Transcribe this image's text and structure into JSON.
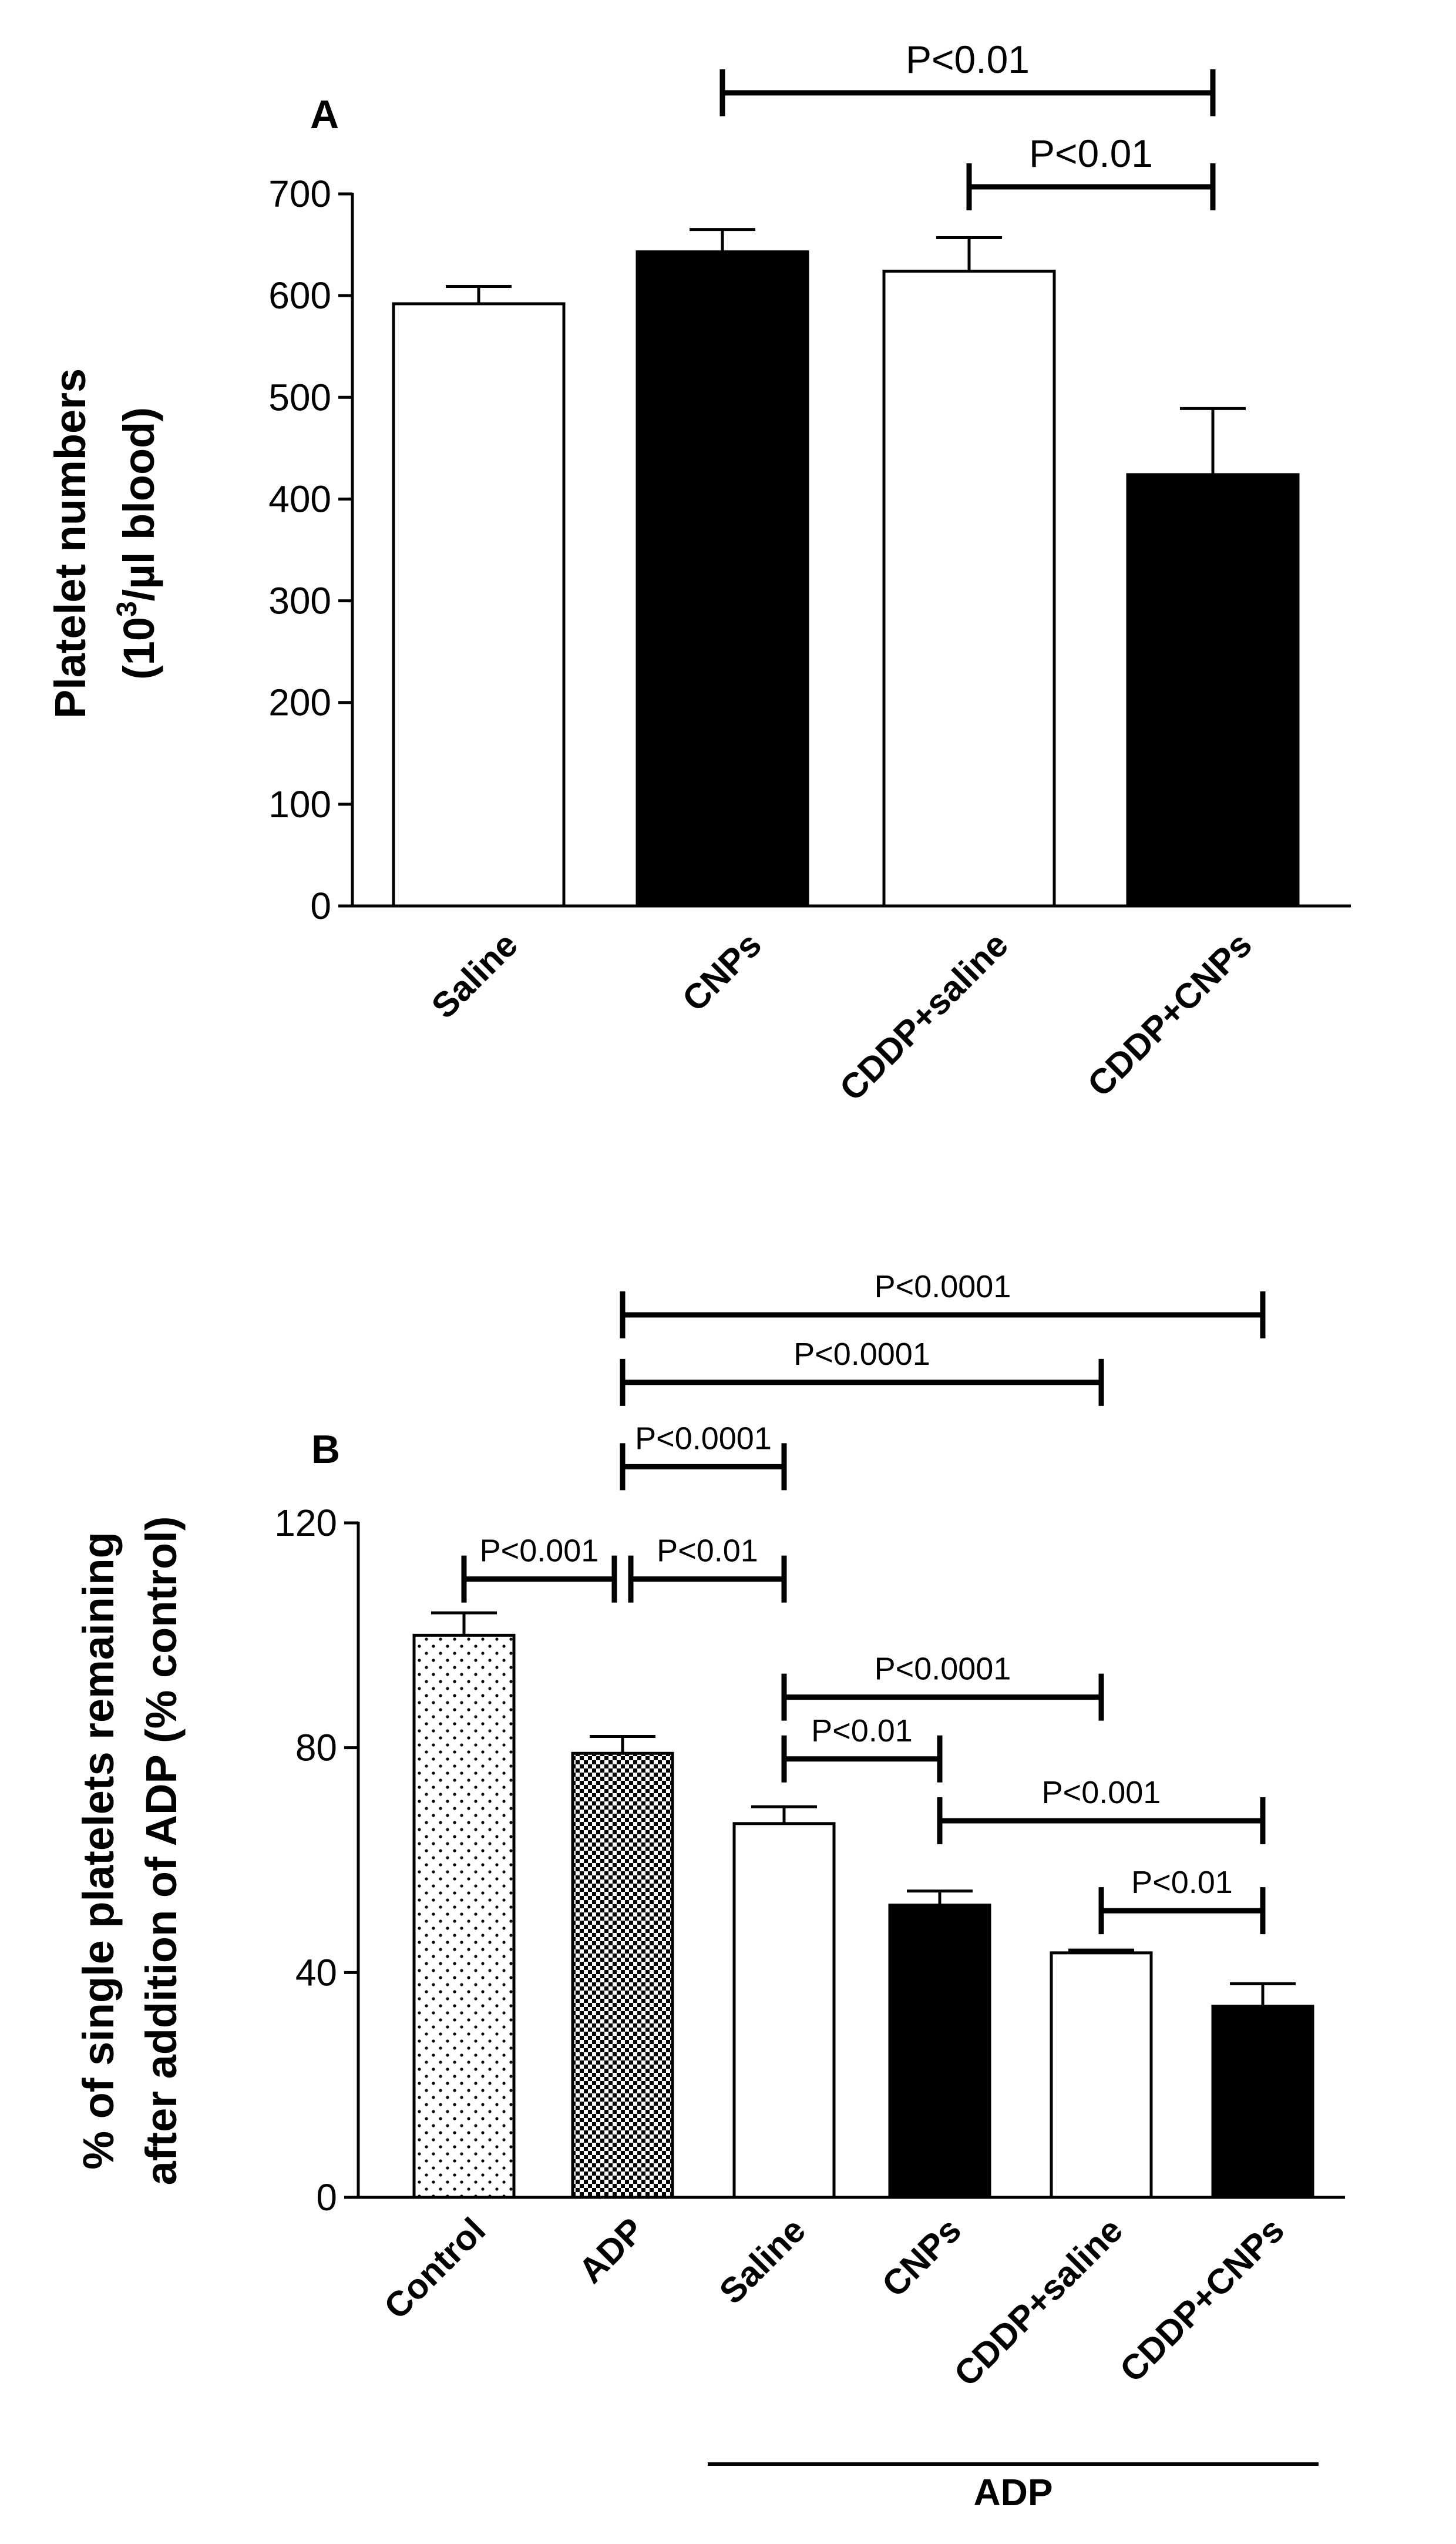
{
  "chart_data": [
    {
      "type": "bar",
      "panel_label": "A",
      "ylabel_line1": "Platelet numbers",
      "ylabel_line2_pre": "(10",
      "ylabel_line2_sup": "3",
      "ylabel_line2_post": "/µl blood)",
      "ylim": [
        0,
        700
      ],
      "yticks": [
        0,
        100,
        200,
        300,
        400,
        500,
        600,
        700
      ],
      "grid": false,
      "categories": [
        "Saline",
        "CNPs",
        "CDDP+saline",
        "CDDP+CNPs"
      ],
      "values": [
        592,
        643,
        624,
        424
      ],
      "errors": [
        17,
        22,
        33,
        65
      ],
      "fills": [
        "white",
        "black",
        "white",
        "black"
      ],
      "comparisons": [
        {
          "from": 1,
          "to": 3,
          "label": "P<0.01",
          "tier": 2
        },
        {
          "from": 2,
          "to": 3,
          "label": "P<0.01",
          "tier": 1
        }
      ]
    },
    {
      "type": "bar",
      "panel_label": "B",
      "ylabel_line1": "% of single platelets remaining",
      "ylabel_line2": "after addition of ADP (% control)",
      "ylim": [
        0,
        120
      ],
      "yticks": [
        0,
        40,
        80,
        120
      ],
      "grid": false,
      "categories": [
        "Control",
        "ADP",
        "Saline",
        "CNPs",
        "CDDP+saline",
        "CDDP+CNPs"
      ],
      "values": [
        100,
        79,
        66.5,
        52,
        43.5,
        34
      ],
      "errors": [
        4,
        3,
        3,
        2.5,
        0.5,
        4
      ],
      "fills": [
        "dots",
        "checker",
        "white",
        "black",
        "white",
        "black"
      ],
      "group_label": "ADP",
      "comparisons": [
        {
          "from": 1,
          "to": 5,
          "label": "P<0.0001",
          "y": 157
        },
        {
          "from": 1,
          "to": 4,
          "label": "P<0.0001",
          "y": 145
        },
        {
          "from": 1,
          "to": 2,
          "label": "P<0.0001",
          "y": 130
        },
        {
          "from": 0,
          "to": 1,
          "label": "P<0.001",
          "y": 110,
          "split": "left"
        },
        {
          "from": 1,
          "to": 2,
          "label": "P<0.01",
          "y": 110,
          "split": "right"
        },
        {
          "from": 2,
          "to": 4,
          "label": "P<0.0001",
          "y": 89
        },
        {
          "from": 2,
          "to": 3,
          "label": "P<0.01",
          "y": 78
        },
        {
          "from": 3,
          "to": 5,
          "label": "P<0.001",
          "y": 67
        },
        {
          "from": 4,
          "to": 5,
          "label": "P<0.01",
          "y": 51
        }
      ]
    }
  ]
}
